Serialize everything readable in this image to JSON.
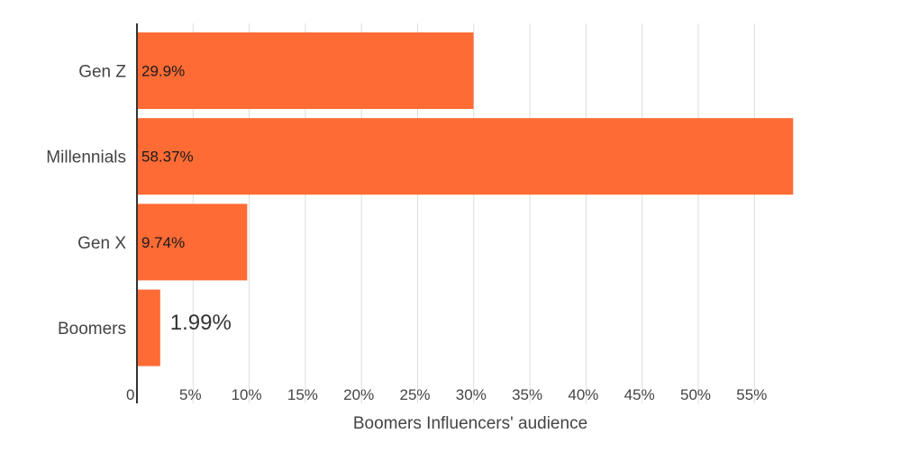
{
  "chart_data": {
    "type": "bar",
    "orientation": "horizontal",
    "categories": [
      "Gen Z",
      "Millennials",
      "Gen X",
      "Boomers"
    ],
    "values": [
      29.9,
      58.37,
      9.74,
      1.99
    ],
    "data_labels": [
      "29.9%",
      "58.37%",
      "9.74%",
      "1.99%"
    ],
    "xlabel": "Boomers Influencers' audience",
    "ylabel": "",
    "xlim": [
      0,
      60
    ],
    "x_ticks": [
      {
        "value": 0,
        "label": "0"
      },
      {
        "value": 5,
        "label": "5%"
      },
      {
        "value": 10,
        "label": "10%"
      },
      {
        "value": 15,
        "label": "15%"
      },
      {
        "value": 20,
        "label": "20%"
      },
      {
        "value": 25,
        "label": "25%"
      },
      {
        "value": 30,
        "label": "30%"
      },
      {
        "value": 35,
        "label": "35%"
      },
      {
        "value": 40,
        "label": "40%"
      },
      {
        "value": 45,
        "label": "45%"
      },
      {
        "value": 50,
        "label": "50%"
      },
      {
        "value": 55,
        "label": "55%"
      }
    ],
    "grid": true,
    "bar_color": "#ff6b35",
    "grid_color": "#dddddd",
    "axis_color": "#333333"
  }
}
